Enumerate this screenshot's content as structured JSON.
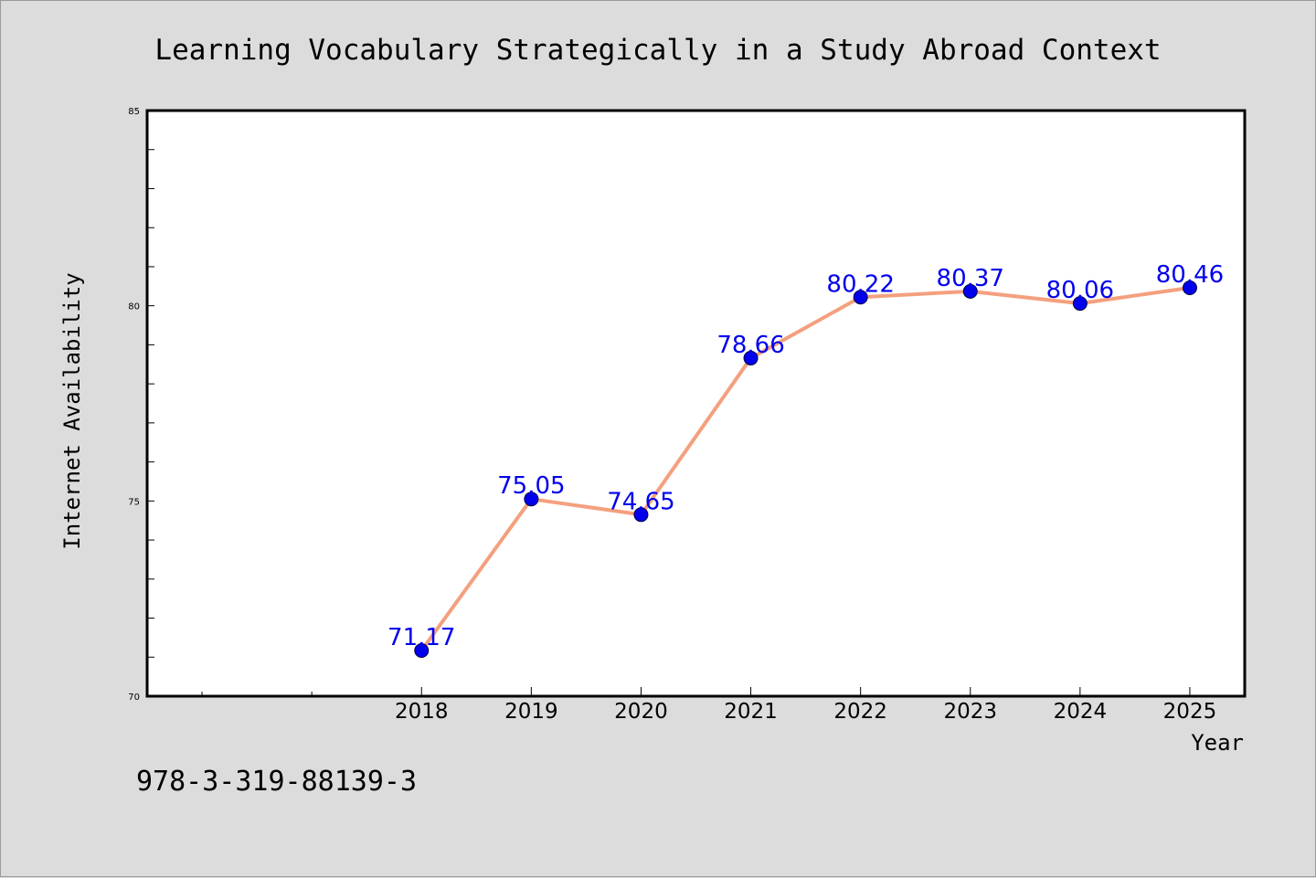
{
  "chart_data": {
    "type": "line",
    "title": "Learning Vocabulary Strategically in a Study Abroad Context",
    "xlabel": "Year",
    "ylabel": "Internet Availability",
    "x": [
      2018,
      2019,
      2020,
      2021,
      2022,
      2023,
      2024,
      2025
    ],
    "x_tick_labels": [
      "2018",
      "2019",
      "2020",
      "2021",
      "2022",
      "2023",
      "2024",
      "2025"
    ],
    "y_ticks": [
      70,
      75,
      80,
      85
    ],
    "y_tick_labels": [
      "70",
      "75",
      "80",
      "85"
    ],
    "series": [
      {
        "values": [
          71.17,
          75.05,
          74.65,
          78.66,
          80.22,
          80.37,
          80.06,
          80.46
        ],
        "value_labels": [
          "71.17",
          "75.05",
          "74.65",
          "78.66",
          "80.22",
          "80.37",
          "80.06",
          "80.46"
        ],
        "line_color": "#f4a07e",
        "marker_color": "#0000ee",
        "label_color": "#0000ee"
      }
    ],
    "ylim": [
      70,
      85
    ],
    "xlim": [
      2015.5,
      2025.5
    ],
    "grid": false,
    "legend": "none",
    "background_color": "#dcdcdc",
    "plot_background_color": "#ffffff"
  },
  "footnote": "978-3-319-88139-3"
}
